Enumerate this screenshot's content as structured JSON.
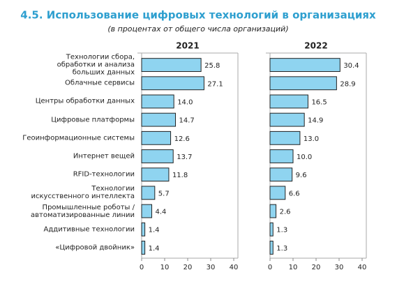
{
  "chart_data": {
    "type": "bar",
    "orientation": "horizontal",
    "title": "4.5. Использование цифровых технологий в организациях",
    "subtitle": "(в процентах от общего числа организаций)",
    "categories": [
      "Технологии сбора,\nобработки и анализа\nбольших данных",
      "Облачные сервисы",
      "Центры обработки данных",
      "Цифровые платформы",
      "Геоинформационные системы",
      "Интернет вещей",
      "RFID-технологии",
      "Технологии\nискусственного интеллекта",
      "Промышленные роботы /\nавтоматизированные линии",
      "Аддитивные технологии",
      "«Цифровой двойник»"
    ],
    "series": [
      {
        "name": "2021",
        "color": "#8fd4f0",
        "values": [
          25.8,
          27.1,
          14.0,
          14.7,
          12.6,
          13.7,
          11.8,
          5.7,
          4.4,
          1.4,
          1.4
        ],
        "value_labels": [
          "25.8",
          "27.1",
          "14.0",
          "14.7",
          "12.6",
          "13.7",
          "11.8",
          "5.7",
          "4.4",
          "1.4",
          "1.4"
        ]
      },
      {
        "name": "2022",
        "color": "#8fd4f0",
        "values": [
          30.4,
          28.9,
          16.5,
          14.9,
          13.0,
          10.0,
          9.6,
          6.6,
          2.6,
          1.3,
          1.3
        ],
        "value_labels": [
          "30.4",
          "28.9",
          "16.5",
          "14.9",
          "13.0",
          "10.0",
          "9.6",
          "6.6",
          "2.6",
          "1.3",
          "1.3"
        ]
      }
    ],
    "xlim": [
      0,
      40
    ],
    "xticks": [
      0,
      10,
      20,
      30,
      40
    ]
  }
}
